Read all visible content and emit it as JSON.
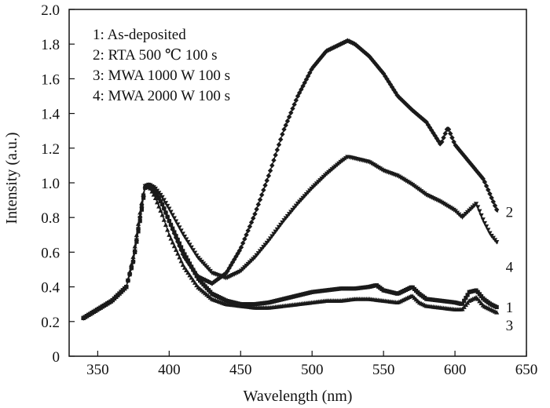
{
  "chart_data": {
    "type": "scatter",
    "xlabel": "Wavelength (nm)",
    "ylabel": "Intensity (a.u.)",
    "xlim": [
      330,
      650
    ],
    "ylim": [
      0,
      2.0
    ],
    "x_ticks": [
      "350",
      "400",
      "450",
      "500",
      "550",
      "600",
      "650"
    ],
    "y_ticks": [
      "0",
      "0.2",
      "0.4",
      "0.6",
      "0.8",
      "1.0",
      "1.2",
      "1.4",
      "1.6",
      "1.8",
      "2.0"
    ],
    "legend": {
      "position": "top-left",
      "entries": [
        "1: As-deposited",
        "2: RTA 500 ℃ 100 s",
        "3: MWA 1000 W 100 s",
        "4: MWA 2000 W 100 s"
      ]
    },
    "series": [
      {
        "name": "1",
        "marker": "square",
        "x": [
          340,
          350,
          360,
          370,
          375,
          380,
          383,
          386,
          390,
          395,
          400,
          410,
          420,
          430,
          440,
          450,
          460,
          470,
          480,
          490,
          500,
          510,
          520,
          530,
          540,
          545,
          550,
          560,
          565,
          570,
          575,
          580,
          590,
          600,
          605,
          610,
          615,
          620,
          625,
          630
        ],
        "y": [
          0.22,
          0.27,
          0.32,
          0.4,
          0.55,
          0.8,
          0.97,
          0.98,
          0.95,
          0.88,
          0.78,
          0.6,
          0.45,
          0.36,
          0.32,
          0.3,
          0.3,
          0.31,
          0.33,
          0.35,
          0.37,
          0.38,
          0.39,
          0.39,
          0.4,
          0.41,
          0.38,
          0.36,
          0.38,
          0.4,
          0.36,
          0.33,
          0.32,
          0.31,
          0.3,
          0.37,
          0.38,
          0.33,
          0.3,
          0.28
        ]
      },
      {
        "name": "2",
        "marker": "diamond",
        "x": [
          340,
          350,
          360,
          370,
          375,
          380,
          383,
          386,
          390,
          395,
          400,
          410,
          420,
          430,
          440,
          450,
          460,
          470,
          480,
          490,
          500,
          510,
          520,
          525,
          530,
          540,
          550,
          560,
          570,
          580,
          590,
          595,
          600,
          610,
          620,
          630
        ],
        "y": [
          0.22,
          0.27,
          0.32,
          0.4,
          0.55,
          0.82,
          0.97,
          0.99,
          0.96,
          0.88,
          0.78,
          0.58,
          0.46,
          0.42,
          0.48,
          0.62,
          0.82,
          1.05,
          1.3,
          1.5,
          1.66,
          1.76,
          1.8,
          1.82,
          1.8,
          1.73,
          1.63,
          1.5,
          1.42,
          1.35,
          1.22,
          1.32,
          1.22,
          1.12,
          1.02,
          0.83
        ]
      },
      {
        "name": "3",
        "marker": "triangle-up",
        "x": [
          340,
          350,
          360,
          370,
          375,
          380,
          383,
          386,
          390,
          395,
          400,
          410,
          420,
          430,
          440,
          450,
          460,
          470,
          480,
          490,
          500,
          510,
          520,
          530,
          540,
          550,
          560,
          565,
          570,
          575,
          580,
          590,
          600,
          605,
          610,
          615,
          620,
          625,
          630
        ],
        "y": [
          0.22,
          0.27,
          0.32,
          0.4,
          0.58,
          0.85,
          0.98,
          0.98,
          0.92,
          0.82,
          0.7,
          0.52,
          0.4,
          0.33,
          0.3,
          0.29,
          0.28,
          0.28,
          0.29,
          0.3,
          0.31,
          0.32,
          0.32,
          0.33,
          0.33,
          0.32,
          0.31,
          0.33,
          0.35,
          0.31,
          0.29,
          0.28,
          0.27,
          0.27,
          0.32,
          0.34,
          0.29,
          0.27,
          0.25
        ]
      },
      {
        "name": "4",
        "marker": "triangle-down",
        "x": [
          340,
          350,
          360,
          370,
          375,
          380,
          383,
          386,
          390,
          395,
          400,
          410,
          420,
          430,
          440,
          450,
          460,
          470,
          480,
          490,
          500,
          510,
          520,
          525,
          530,
          540,
          550,
          560,
          570,
          580,
          590,
          600,
          605,
          610,
          615,
          620,
          625,
          630
        ],
        "y": [
          0.22,
          0.27,
          0.32,
          0.4,
          0.55,
          0.82,
          0.98,
          0.99,
          0.97,
          0.92,
          0.85,
          0.7,
          0.57,
          0.48,
          0.45,
          0.49,
          0.57,
          0.67,
          0.78,
          0.88,
          0.97,
          1.05,
          1.12,
          1.15,
          1.14,
          1.12,
          1.07,
          1.04,
          0.99,
          0.93,
          0.89,
          0.84,
          0.8,
          0.84,
          0.88,
          0.78,
          0.7,
          0.65
        ]
      }
    ]
  }
}
